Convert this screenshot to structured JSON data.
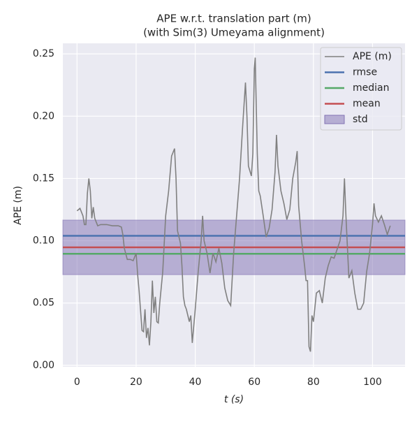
{
  "chart_data": {
    "type": "line",
    "title": "APE w.r.t. translation part (m)",
    "subtitle": "(with Sim(3) Umeyama alignment)",
    "xlabel": "t (s)",
    "ylabel": "APE (m)",
    "xlim": [
      -4.8,
      111.0
    ],
    "ylim": [
      -0.0012,
      0.2585
    ],
    "xticks": [
      0,
      20,
      40,
      60,
      80,
      100
    ],
    "yticks": [
      {
        "value": 0,
        "label": "0.00"
      },
      {
        "value": 0.05,
        "label": "0.05"
      },
      {
        "value": 0.1,
        "label": "0.10"
      },
      {
        "value": 0.15,
        "label": "0.15"
      },
      {
        "value": 0.2,
        "label": "0.20"
      },
      {
        "value": 0.25,
        "label": "0.25"
      }
    ],
    "grid": true,
    "legend": "upper right",
    "series": [
      {
        "name": "APE (m)",
        "color": "#808080",
        "x": [
          0,
          1,
          2,
          2.5,
          3,
          3.5,
          4,
          4.5,
          5,
          5.5,
          6,
          7,
          8,
          10,
          12,
          14,
          15,
          15.5,
          16,
          17,
          18,
          19,
          20,
          20.5,
          21,
          22,
          22.5,
          23,
          23.5,
          24,
          24.5,
          25,
          25.5,
          26,
          26.5,
          27,
          27.5,
          28,
          29,
          30,
          31,
          32,
          32.5,
          33,
          33.5,
          34,
          35,
          35.5,
          36,
          36.5,
          37,
          38,
          38.5,
          39,
          40,
          41,
          42,
          42.5,
          43,
          44,
          45,
          46,
          47,
          48,
          49,
          50,
          51,
          52,
          53,
          54,
          55,
          56,
          57,
          57.5,
          58,
          59,
          59.5,
          60,
          60.3,
          61,
          61.5,
          62,
          63,
          64,
          65,
          66,
          67,
          67.5,
          68,
          69,
          70,
          71,
          72,
          73,
          74,
          74.5,
          75,
          76,
          77,
          77.5,
          78,
          78.5,
          79,
          79.5,
          80,
          81,
          82,
          83,
          84,
          85,
          86,
          87,
          88,
          89,
          90,
          90.5,
          91,
          92,
          93,
          94,
          95,
          96,
          97,
          98,
          99,
          100,
          100.5,
          101,
          102,
          103,
          104,
          105,
          106
        ],
        "values": [
          0.124,
          0.126,
          0.12,
          0.113,
          0.113,
          0.138,
          0.15,
          0.14,
          0.118,
          0.127,
          0.118,
          0.112,
          0.113,
          0.113,
          0.112,
          0.112,
          0.111,
          0.105,
          0.094,
          0.085,
          0.085,
          0.084,
          0.09,
          0.073,
          0.06,
          0.028,
          0.027,
          0.045,
          0.022,
          0.03,
          0.016,
          0.035,
          0.068,
          0.042,
          0.055,
          0.035,
          0.034,
          0.05,
          0.075,
          0.12,
          0.14,
          0.168,
          0.171,
          0.174,
          0.15,
          0.108,
          0.098,
          0.08,
          0.055,
          0.048,
          0.045,
          0.035,
          0.04,
          0.018,
          0.045,
          0.075,
          0.1,
          0.12,
          0.1,
          0.09,
          0.074,
          0.09,
          0.083,
          0.094,
          0.082,
          0.062,
          0.052,
          0.048,
          0.09,
          0.12,
          0.15,
          0.19,
          0.227,
          0.2,
          0.16,
          0.152,
          0.17,
          0.238,
          0.247,
          0.17,
          0.14,
          0.136,
          0.12,
          0.103,
          0.11,
          0.125,
          0.155,
          0.185,
          0.16,
          0.14,
          0.13,
          0.117,
          0.125,
          0.15,
          0.163,
          0.172,
          0.128,
          0.1,
          0.08,
          0.068,
          0.068,
          0.015,
          0.011,
          0.04,
          0.035,
          0.058,
          0.06,
          0.05,
          0.07,
          0.08,
          0.087,
          0.086,
          0.093,
          0.1,
          0.12,
          0.15,
          0.12,
          0.07,
          0.076,
          0.058,
          0.045,
          0.045,
          0.05,
          0.075,
          0.09,
          0.113,
          0.13,
          0.12,
          0.115,
          0.12,
          0.113,
          0.105,
          0.112
        ]
      },
      {
        "name": "rmse",
        "color": "#4c72b0",
        "value": 0.104
      },
      {
        "name": "median",
        "color": "#55a868",
        "value": 0.0895
      },
      {
        "name": "mean",
        "color": "#c44e52",
        "value": 0.0947
      },
      {
        "name": "std",
        "color": "#8172b3",
        "value": 0.0219
      }
    ]
  }
}
